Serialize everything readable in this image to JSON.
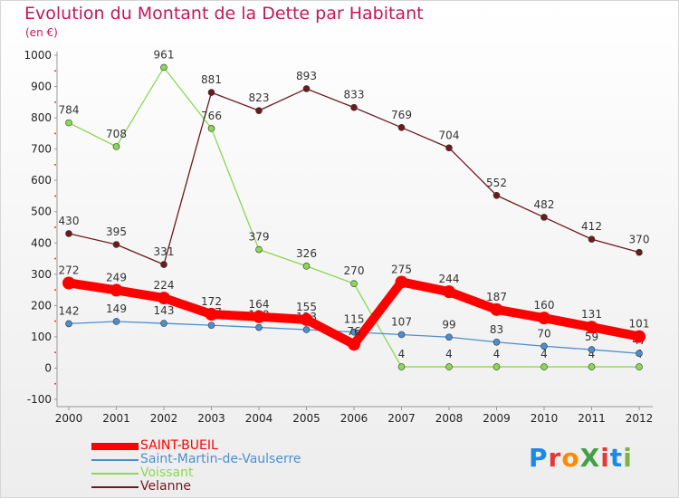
{
  "header": {
    "title": "Evolution du Montant de la Dette par Habitant",
    "unit": "(en €)"
  },
  "logo": {
    "text": "ProXiti",
    "colors": [
      "#1e88e5",
      "#e53935",
      "#fb8c00",
      "#43a047",
      "#e53935",
      "#1e88e5",
      "#7cb342"
    ]
  },
  "chart_data": {
    "type": "line",
    "title": "Evolution du Montant de la Dette par Habitant",
    "ylabel": "(en €)",
    "xlabel": "",
    "ylim": [
      -100,
      1000
    ],
    "yticks": [
      -100,
      0,
      100,
      200,
      300,
      400,
      500,
      600,
      700,
      800,
      900,
      1000
    ],
    "grid": false,
    "legend_position": "bottom-left",
    "x": [
      "2000",
      "2001",
      "2002",
      "2003",
      "2004",
      "2005",
      "2006",
      "2007",
      "2008",
      "2009",
      "2010",
      "2011",
      "2012"
    ],
    "series": [
      {
        "name": "Velanne",
        "color": "#6d1a1f",
        "values": [
          430,
          395,
          331,
          881,
          823,
          893,
          833,
          769,
          704,
          552,
          482,
          412,
          370
        ],
        "labels": [
          "430",
          "395",
          "331",
          "881",
          "823",
          "893",
          "833",
          "769",
          "704",
          "552",
          "482",
          "412",
          "370"
        ]
      },
      {
        "name": "Voissant",
        "color": "#8bd854",
        "values": [
          784,
          708,
          961,
          766,
          379,
          326,
          270,
          4,
          4,
          4,
          4,
          4,
          4
        ],
        "labels": [
          "784",
          "708",
          "961",
          "766",
          "379",
          "326",
          "270",
          "4",
          "4",
          "4",
          "4",
          "4",
          "4"
        ]
      },
      {
        "name": "Saint-Martin-de-Vaulserre",
        "color": "#4a90d0",
        "values": [
          142,
          149,
          143,
          137,
          130,
          123,
          115,
          107,
          99,
          83,
          70,
          59,
          47
        ],
        "labels": [
          "142",
          "149",
          "143",
          "137",
          "130",
          "123",
          "115",
          "107",
          "99",
          "83",
          "70",
          "59",
          "47"
        ]
      },
      {
        "name": "SAINT-BUEIL",
        "color": "#ff0000",
        "values": [
          272,
          249,
          224,
          172,
          164,
          155,
          76,
          275,
          244,
          187,
          160,
          131,
          101
        ],
        "labels": [
          "272",
          "249",
          "224",
          "172",
          "164",
          "155",
          "76",
          "275",
          "244",
          "187",
          "160",
          "131",
          "101"
        ]
      }
    ],
    "legend": [
      "SAINT-BUEIL",
      "Saint-Martin-de-Vaulserre",
      "Voissant",
      "Velanne"
    ]
  }
}
